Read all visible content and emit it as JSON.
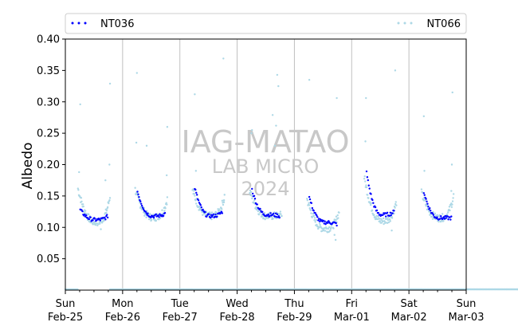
{
  "chart_data": {
    "type": "scatter",
    "ylabel": "Albedo",
    "ylim": [
      0.0,
      0.4
    ],
    "yticks": [
      0.05,
      0.1,
      0.15,
      0.2,
      0.25,
      0.3,
      0.35,
      0.4
    ],
    "ytick_labels": [
      "0.05",
      "0.10",
      "0.15",
      "0.20",
      "0.25",
      "0.30",
      "0.35",
      "0.40"
    ],
    "x_range_days": [
      0,
      7
    ],
    "xticks": [
      {
        "day": 0,
        "line1": "Sun",
        "line2": "Feb-25"
      },
      {
        "day": 1,
        "line1": "Mon",
        "line2": "Feb-26"
      },
      {
        "day": 2,
        "line1": "Tue",
        "line2": "Feb-27"
      },
      {
        "day": 3,
        "line1": "Wed",
        "line2": "Feb-28"
      },
      {
        "day": 4,
        "line1": "Thu",
        "line2": "Feb-29"
      },
      {
        "day": 5,
        "line1": "Fri",
        "line2": "Mar-01"
      },
      {
        "day": 6,
        "line1": "Sat",
        "line2": "Mar-02"
      },
      {
        "day": 7,
        "line1": "Sun",
        "line2": "Mar-03"
      }
    ],
    "grid": "vertical-daily",
    "legend_position": "top",
    "watermark": [
      "IAG-MATAO",
      "LAB MICRO",
      "2024"
    ],
    "series": [
      {
        "name": "NT036",
        "color": "#0000ff",
        "days": [
          {
            "start": 0.26,
            "end": 0.74,
            "first": 0.128,
            "min": 0.112,
            "last": 0.118
          },
          {
            "start": 1.26,
            "end": 1.74,
            "first": 0.157,
            "min": 0.118,
            "last": 0.122
          },
          {
            "start": 2.26,
            "end": 2.74,
            "first": 0.163,
            "min": 0.118,
            "last": 0.125
          },
          {
            "start": 3.26,
            "end": 3.74,
            "first": 0.16,
            "min": 0.12,
            "last": 0.118
          },
          {
            "start": 4.26,
            "end": 4.74,
            "first": 0.148,
            "min": 0.108,
            "last": 0.105
          },
          {
            "start": 5.26,
            "end": 5.74,
            "first": 0.187,
            "min": 0.12,
            "last": 0.125
          },
          {
            "start": 6.26,
            "end": 6.74,
            "first": 0.157,
            "min": 0.115,
            "last": 0.115
          }
        ]
      },
      {
        "name": "NT066",
        "color": "#add8e6",
        "days": [
          {
            "start": 0.22,
            "end": 0.78,
            "first": 0.162,
            "min": 0.108,
            "last": 0.15
          },
          {
            "start": 1.22,
            "end": 1.78,
            "first": 0.16,
            "min": 0.116,
            "last": 0.145
          },
          {
            "start": 2.22,
            "end": 2.78,
            "first": 0.16,
            "min": 0.118,
            "last": 0.15
          },
          {
            "start": 3.22,
            "end": 3.78,
            "first": 0.158,
            "min": 0.118,
            "last": 0.12
          },
          {
            "start": 4.22,
            "end": 4.78,
            "first": 0.145,
            "min": 0.098,
            "last": 0.125
          },
          {
            "start": 5.22,
            "end": 5.78,
            "first": 0.18,
            "min": 0.11,
            "last": 0.14
          },
          {
            "start": 6.22,
            "end": 6.78,
            "first": 0.155,
            "min": 0.115,
            "last": 0.15
          }
        ],
        "outliers": [
          {
            "day": 0.26,
            "v": 0.296
          },
          {
            "day": 0.24,
            "v": 0.188
          },
          {
            "day": 0.78,
            "v": 0.329
          },
          {
            "day": 0.77,
            "v": 0.2
          },
          {
            "day": 0.62,
            "v": 0.097
          },
          {
            "day": 0.7,
            "v": 0.175
          },
          {
            "day": 1.25,
            "v": 0.346
          },
          {
            "day": 1.24,
            "v": 0.235
          },
          {
            "day": 1.42,
            "v": 0.23
          },
          {
            "day": 1.78,
            "v": 0.26
          },
          {
            "day": 1.77,
            "v": 0.183
          },
          {
            "day": 2.26,
            "v": 0.312
          },
          {
            "day": 2.28,
            "v": 0.19
          },
          {
            "day": 2.76,
            "v": 0.369
          },
          {
            "day": 2.77,
            "v": 0.14
          },
          {
            "day": 3.26,
            "v": 0.255
          },
          {
            "day": 3.25,
            "v": 0.25
          },
          {
            "day": 3.62,
            "v": 0.279
          },
          {
            "day": 3.7,
            "v": 0.343
          },
          {
            "day": 3.72,
            "v": 0.325
          },
          {
            "day": 3.68,
            "v": 0.262
          },
          {
            "day": 3.66,
            "v": 0.23
          },
          {
            "day": 4.26,
            "v": 0.335
          },
          {
            "day": 4.74,
            "v": 0.306
          },
          {
            "day": 4.72,
            "v": 0.08
          },
          {
            "day": 4.7,
            "v": 0.088
          },
          {
            "day": 5.25,
            "v": 0.306
          },
          {
            "day": 5.24,
            "v": 0.237
          },
          {
            "day": 5.76,
            "v": 0.35
          },
          {
            "day": 5.7,
            "v": 0.095
          },
          {
            "day": 6.26,
            "v": 0.277
          },
          {
            "day": 6.27,
            "v": 0.19
          },
          {
            "day": 6.76,
            "v": 0.315
          },
          {
            "day": 6.75,
            "v": 0.2
          },
          {
            "day": 6.74,
            "v": 0.158
          }
        ],
        "night_level": 0.0
      }
    ]
  }
}
